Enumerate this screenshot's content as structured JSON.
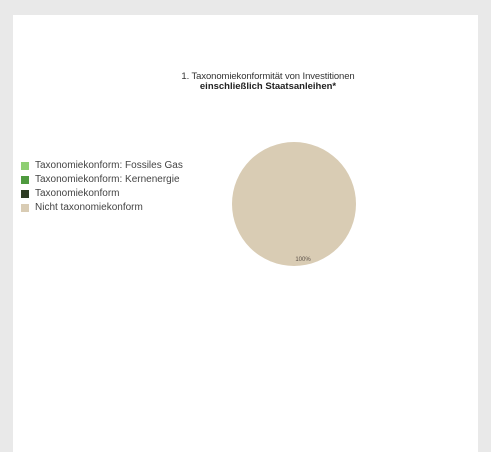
{
  "chart_data": {
    "type": "pie",
    "title_line1": "1. Taxonomiekonformität von Investitionen",
    "title_line2": "einschließlich Staatsanleihen*",
    "legend_position": "left",
    "slices": [
      {
        "label": "Taxonomiekonform: Fossiles Gas",
        "value": 0,
        "color": "#8fcf73"
      },
      {
        "label": "Taxonomiekonform: Kernenergie",
        "value": 0,
        "color": "#4f9a3f"
      },
      {
        "label": "Taxonomiekonform",
        "value": 0,
        "color": "#2d3b23"
      },
      {
        "label": "Nicht taxonomiekonform",
        "value": 100,
        "color": "#d9ccb4"
      }
    ],
    "data_labels": [
      "100%"
    ]
  }
}
